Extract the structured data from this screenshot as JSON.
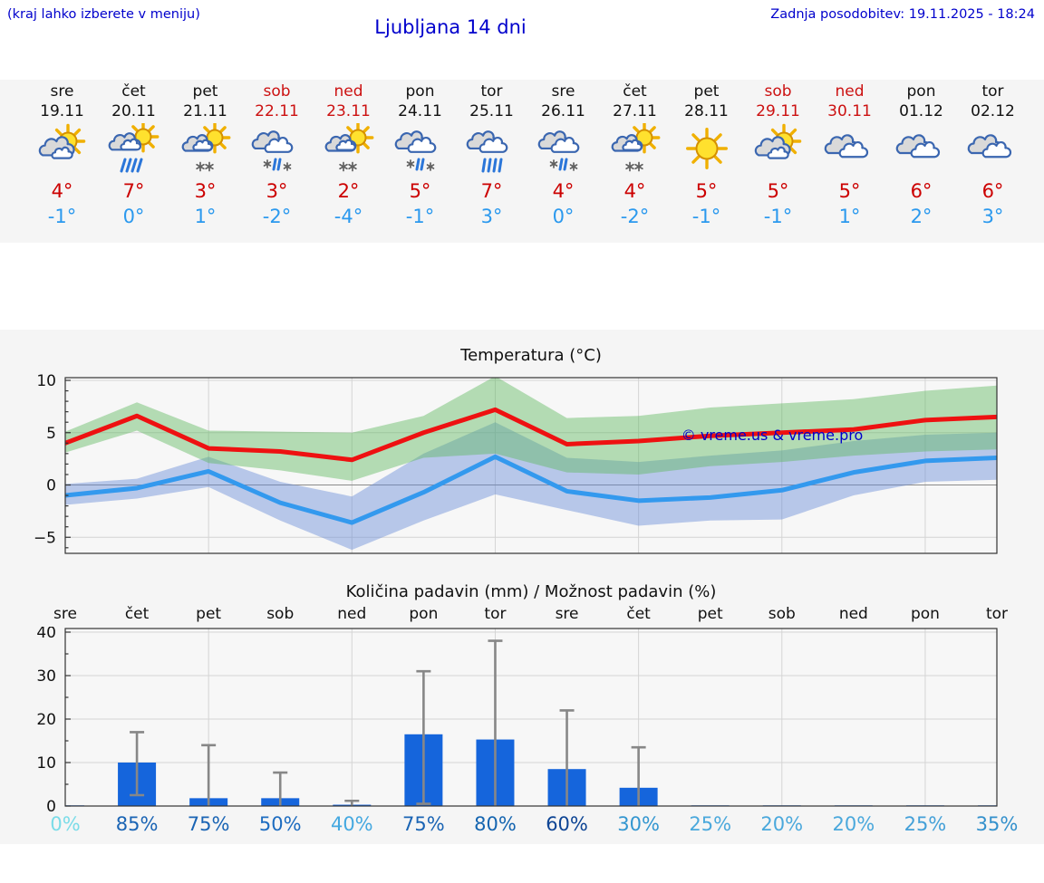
{
  "header": {
    "hint": "(kraj lahko izberete v meniju)",
    "title": "Ljubljana 14 dni",
    "updated": "Zadnja posodobitev: 19.11.2025 - 18:24"
  },
  "colors": {
    "header_blue": "#0000cc",
    "weekday_text": "#111111",
    "weekend_text": "#cc1111",
    "high_temp": "#cc0000",
    "low_temp": "#2b99ee",
    "strip_bg": "#f5f5f5",
    "max_line": "#ee1111",
    "min_line": "#3399ee",
    "max_band": "rgba(95,185,95,0.45)",
    "min_band": "rgba(105,140,215,0.45)",
    "bar_fill": "#1565dc",
    "error_bar": "#878787",
    "watermark_blue": "#0000cc"
  },
  "days": [
    {
      "name": "sre",
      "date": "19.11",
      "weekend": false,
      "icon": "sun-cloud",
      "high": "4°",
      "low": "-1°"
    },
    {
      "name": "čet",
      "date": "20.11",
      "weekend": false,
      "icon": "sun-cloud-rain",
      "high": "7°",
      "low": "0°"
    },
    {
      "name": "pet",
      "date": "21.11",
      "weekend": false,
      "icon": "sun-cloud-snow",
      "high": "3°",
      "low": "1°"
    },
    {
      "name": "sob",
      "date": "22.11",
      "weekend": true,
      "icon": "cloud-sleet",
      "high": "3°",
      "low": "-2°"
    },
    {
      "name": "ned",
      "date": "23.11",
      "weekend": true,
      "icon": "sun-cloud-snow",
      "high": "2°",
      "low": "-4°"
    },
    {
      "name": "pon",
      "date": "24.11",
      "weekend": false,
      "icon": "cloud-sleet",
      "high": "5°",
      "low": "-1°"
    },
    {
      "name": "tor",
      "date": "25.11",
      "weekend": false,
      "icon": "cloud-rain",
      "high": "7°",
      "low": "3°"
    },
    {
      "name": "sre",
      "date": "26.11",
      "weekend": false,
      "icon": "cloud-sleet",
      "high": "4°",
      "low": "0°"
    },
    {
      "name": "čet",
      "date": "27.11",
      "weekend": false,
      "icon": "sun-cloud-snow",
      "high": "4°",
      "low": "-2°"
    },
    {
      "name": "pet",
      "date": "28.11",
      "weekend": false,
      "icon": "sun",
      "high": "5°",
      "low": "-1°"
    },
    {
      "name": "sob",
      "date": "29.11",
      "weekend": true,
      "icon": "sun-cloud",
      "high": "5°",
      "low": "-1°"
    },
    {
      "name": "ned",
      "date": "30.11",
      "weekend": true,
      "icon": "clouds",
      "high": "5°",
      "low": "1°"
    },
    {
      "name": "pon",
      "date": "01.12",
      "weekend": false,
      "icon": "clouds",
      "high": "6°",
      "low": "2°"
    },
    {
      "name": "tor",
      "date": "02.12",
      "weekend": false,
      "icon": "clouds",
      "high": "6°",
      "low": "3°"
    }
  ],
  "chart_data": [
    {
      "type": "line",
      "title": "Temperatura (°C)",
      "categories": [
        "sre 19.11",
        "čet 20.11",
        "pet 21.11",
        "sob 22.11",
        "ned 23.11",
        "pon 24.11",
        "tor 25.11",
        "sre 26.11",
        "čet 27.11",
        "pet 28.11",
        "sob 29.11",
        "ned 30.11",
        "pon 01.12",
        "tor 02.12"
      ],
      "series": [
        {
          "name": "max_temp",
          "values": [
            4,
            6.6,
            3.5,
            3.2,
            2.4,
            5,
            7.2,
            3.9,
            4.2,
            4.7,
            5,
            5.3,
            6.2,
            6.5
          ]
        },
        {
          "name": "min_temp",
          "values": [
            -1,
            -0.3,
            1.3,
            -1.7,
            -3.6,
            -0.7,
            2.7,
            -0.6,
            -1.5,
            -1.2,
            -0.5,
            1.2,
            2.3,
            2.6
          ]
        },
        {
          "name": "max_range_upper",
          "values": [
            5.1,
            7.9,
            5.2,
            5.1,
            5,
            6.6,
            10.4,
            6.4,
            6.6,
            7.4,
            7.8,
            8.2,
            9,
            9.5
          ]
        },
        {
          "name": "max_range_lower",
          "values": [
            3.1,
            5.2,
            2.1,
            1.4,
            0.4,
            2.6,
            3,
            1.2,
            1,
            1.8,
            2.2,
            2.8,
            3.2,
            3.4
          ]
        },
        {
          "name": "min_range_upper",
          "values": [
            0.1,
            0.6,
            2.7,
            0.3,
            -1.1,
            3,
            6,
            2.6,
            2.2,
            2.8,
            3.3,
            4.2,
            4.8,
            5
          ]
        },
        {
          "name": "min_range_lower",
          "values": [
            -1.9,
            -1.3,
            -0.2,
            -3.4,
            -6.2,
            -3.4,
            -0.9,
            -2.4,
            -3.9,
            -3.4,
            -3.3,
            -1,
            0.3,
            0.5
          ]
        }
      ],
      "ylim": [
        -6.5,
        10.3
      ],
      "yticks": [
        10,
        5,
        0,
        -5
      ],
      "ytick_labels": [
        "10",
        "5",
        "0",
        "−5"
      ],
      "grid": true,
      "watermark": "© vreme.us & vreme.pro"
    },
    {
      "type": "bar",
      "title": "Količina padavin (mm) / Možnost padavin (%)",
      "categories": [
        "sre",
        "čet",
        "pet",
        "sob",
        "ned",
        "pon",
        "tor",
        "sre",
        "čet",
        "pet",
        "sob",
        "ned",
        "pon",
        "tor"
      ],
      "values_mm": [
        0.15,
        10,
        1.8,
        1.8,
        0.3,
        16.5,
        15.3,
        8.5,
        4.2,
        0.15,
        0.15,
        0.15,
        0.15,
        0.15
      ],
      "error_low": [
        null,
        2.5,
        0,
        0,
        0,
        0.5,
        0,
        0,
        0,
        null,
        null,
        null,
        null,
        null
      ],
      "error_high": [
        null,
        17,
        14,
        7.7,
        1.2,
        31,
        38,
        22,
        13.5,
        null,
        null,
        null,
        null,
        null
      ],
      "probability": [
        "0%",
        "85%",
        "75%",
        "50%",
        "40%",
        "75%",
        "80%",
        "60%",
        "30%",
        "25%",
        "20%",
        "20%",
        "25%",
        "35%"
      ],
      "prob_colors": [
        "#7adce8",
        "#1a64b4",
        "#1a64b4",
        "#1d6cc0",
        "#44a8e0",
        "#1a64b4",
        "#1565b0",
        "#0d4494",
        "#3396d0",
        "#4aa8dc",
        "#4aa8dc",
        "#4aa8dc",
        "#44a0d8",
        "#3390cc"
      ],
      "ylim": [
        0,
        40
      ],
      "yticks": [
        40,
        30,
        20,
        10,
        0
      ],
      "ytick_labels": [
        "40",
        "30",
        "20",
        "10",
        "0"
      ],
      "grid": true
    }
  ]
}
